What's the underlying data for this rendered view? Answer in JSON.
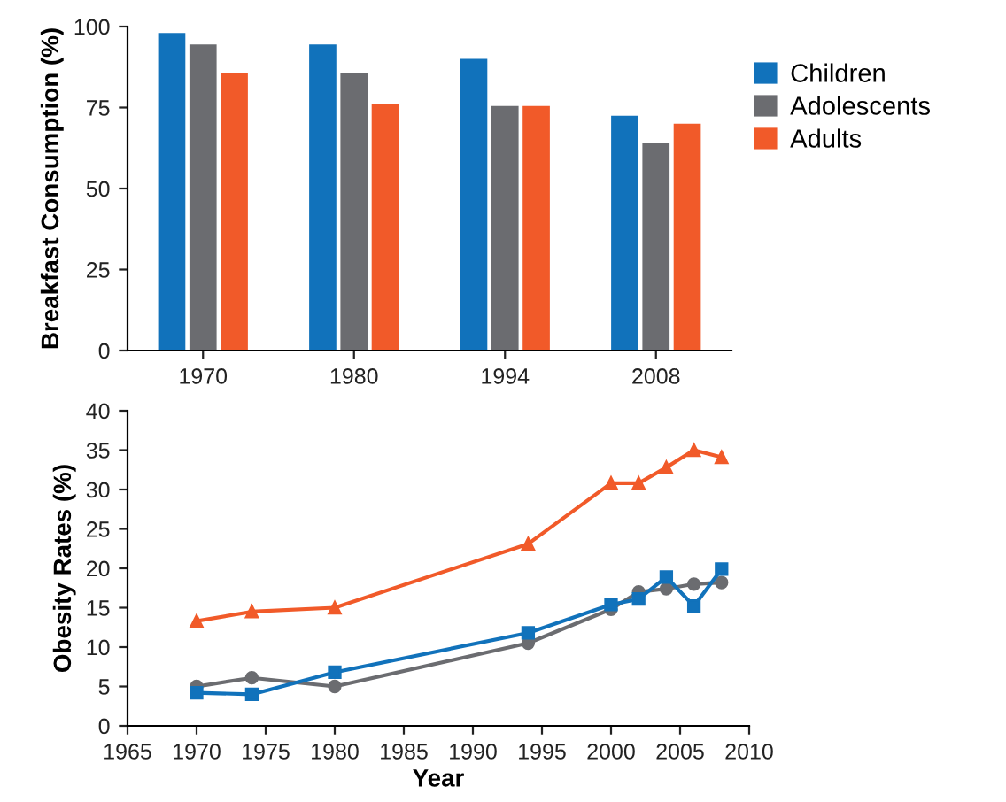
{
  "chart_data": [
    {
      "type": "bar",
      "ylabel": "Breakfast Consumption (%)",
      "categories": [
        "1970",
        "1980",
        "1994",
        "2008"
      ],
      "ylim": [
        0,
        100
      ],
      "yticks": [
        0,
        25,
        50,
        75,
        100
      ],
      "grid": false,
      "legend": "right",
      "series": [
        {
          "name": "Children",
          "color": "#1172bb",
          "values": [
            98,
            94.5,
            90,
            72.5
          ]
        },
        {
          "name": "Adolescents",
          "color": "#6b6c70",
          "values": [
            94.5,
            85.5,
            75.5,
            64
          ]
        },
        {
          "name": "Adults",
          "color": "#f15a29",
          "values": [
            85.5,
            76,
            75.5,
            70
          ]
        }
      ]
    },
    {
      "type": "line",
      "xlabel": "Year",
      "ylabel": "Obesity Rates (%)",
      "x": [
        1970,
        1974,
        1980,
        1994,
        2000,
        2002,
        2004,
        2006,
        2008
      ],
      "xlim": [
        1965,
        2010
      ],
      "xticks": [
        1965,
        1970,
        1975,
        1980,
        1985,
        1990,
        1995,
        2000,
        2005,
        2010
      ],
      "ylim": [
        0,
        40
      ],
      "yticks": [
        0,
        5,
        10,
        15,
        20,
        25,
        30,
        35,
        40
      ],
      "grid": false,
      "legend": false,
      "line_style": "solid",
      "series": [
        {
          "color": "#6b6c70",
          "marker": "circle",
          "values": [
            5,
            6.1,
            5,
            10.5,
            14.8,
            17,
            17.4,
            18,
            18.2
          ]
        },
        {
          "color": "#1172bb",
          "marker": "square",
          "values": [
            4.2,
            4,
            6.8,
            11.8,
            15.4,
            16.1,
            18.9,
            15.2,
            19.9
          ]
        },
        {
          "color": "#f15a29",
          "marker": "triangle",
          "values": [
            13.3,
            14.5,
            15,
            23.1,
            30.8,
            30.8,
            32.8,
            35,
            34.1
          ]
        }
      ]
    }
  ]
}
